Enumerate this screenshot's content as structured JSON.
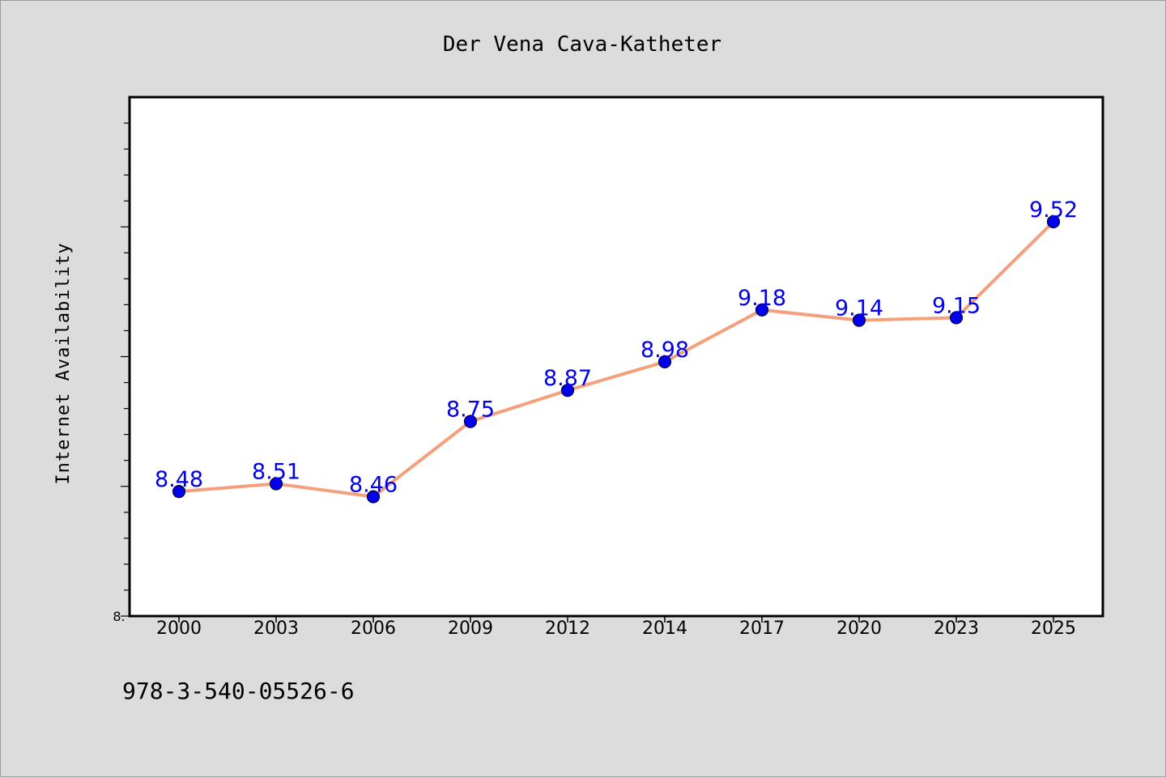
{
  "chart_data": {
    "type": "line",
    "title": "Der Vena Cava-Katheter",
    "xlabel": "",
    "ylabel": "Internet Availability",
    "categories": [
      "2000",
      "2003",
      "2006",
      "2009",
      "2012",
      "2014",
      "2017",
      "2020",
      "2023",
      "2025"
    ],
    "series": [
      {
        "values": [
          8.48,
          8.51,
          8.46,
          8.75,
          8.87,
          8.98,
          9.18,
          9.14,
          9.15,
          9.52
        ],
        "labels": [
          "8.48",
          "8.51",
          "8.46",
          "8.75",
          "8.87",
          "8.98",
          "9.18",
          "9.14",
          "9.15",
          "9.52"
        ]
      }
    ],
    "ylim": [
      8.0,
      10.0
    ],
    "y_tick_label": "8.",
    "grid": false,
    "legend": "none",
    "colors": {
      "line": "#f4a07c",
      "marker": "#0000ee",
      "marker_edge": "#000033",
      "label": "#0000ee",
      "plot_bg": "#ffffff",
      "page_bg": "#dcdcdc"
    }
  },
  "footnote": "978-3-540-05526-6"
}
